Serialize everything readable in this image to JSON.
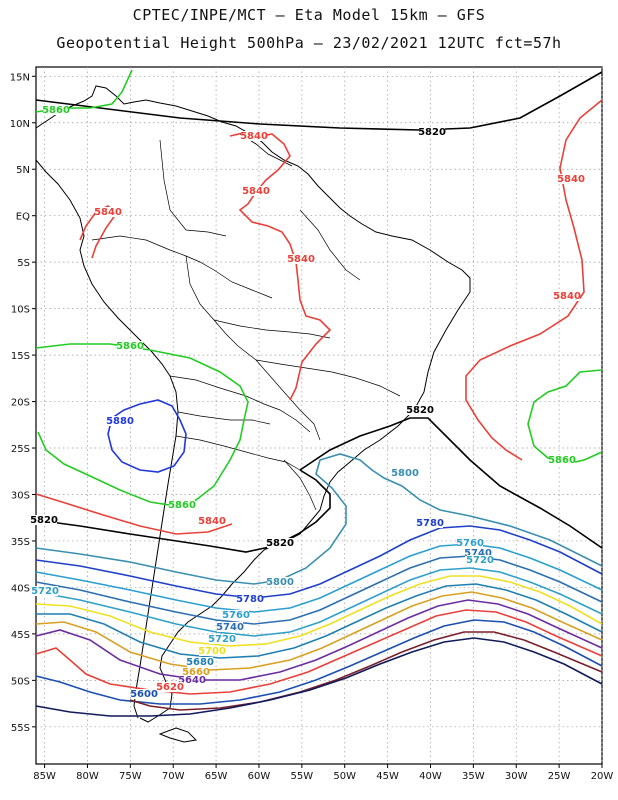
{
  "header": {
    "line1": "CPTEC/INPE/MCT –  Eta Model 15km – GFS",
    "line2": "Geopotential Height 500hPa – 23/02/2021 12UTC fct=57h"
  },
  "axes": {
    "lat_ticks": [
      "15N",
      "10N",
      "5N",
      "EQ",
      "5S",
      "10S",
      "15S",
      "20S",
      "25S",
      "30S",
      "35S",
      "40S",
      "45S",
      "50S",
      "55S"
    ],
    "lon_ticks": [
      "85W",
      "80W",
      "75W",
      "70W",
      "65W",
      "60W",
      "55W",
      "50W",
      "45W",
      "40W",
      "35W",
      "30W",
      "25W",
      "20W"
    ],
    "grid": true,
    "lat_range": [
      -59,
      16
    ],
    "lon_range": [
      -86,
      -20
    ]
  },
  "contour_colors": {
    "5560": "#111a5c",
    "5580": "#7a1f2a",
    "5600": "#1a4fb0",
    "5620": "#e8413a",
    "5640": "#6a2ca0",
    "5660": "#d9a020",
    "5680": "#1f7fb0",
    "5700": "#f0e020",
    "5720": "#2fa0c8",
    "5740": "#2b6fb0",
    "5760": "#2a9fd0",
    "5780": "#1f3fc8",
    "5800": "#3a8fb0",
    "5820": "#000000",
    "5840": "#e8413a",
    "5860": "#22cc22",
    "5880": "#2238d8"
  },
  "contour_labels": [
    {
      "text": "5860",
      "color": "#22cc22"
    },
    {
      "text": "5840",
      "color": "#e8413a"
    },
    {
      "text": "5840",
      "color": "#e8413a"
    },
    {
      "text": "5840",
      "color": "#e8413a"
    },
    {
      "text": "5840",
      "color": "#e8413a"
    },
    {
      "text": "5840",
      "color": "#e8413a"
    },
    {
      "text": "5840",
      "color": "#e8413a"
    },
    {
      "text": "5820",
      "color": "#000000"
    },
    {
      "text": "5860",
      "color": "#22cc22"
    },
    {
      "text": "5880",
      "color": "#2238d8"
    },
    {
      "text": "5820",
      "color": "#000000"
    },
    {
      "text": "5860",
      "color": "#22cc22"
    },
    {
      "text": "5800",
      "color": "#3a8fb0"
    },
    {
      "text": "5860",
      "color": "#22cc22"
    },
    {
      "text": "5840",
      "color": "#e8413a"
    },
    {
      "text": "5780",
      "color": "#1f3fc8"
    },
    {
      "text": "5820",
      "color": "#000000"
    },
    {
      "text": "5820",
      "color": "#000000"
    },
    {
      "text": "5760",
      "color": "#2a9fd0"
    },
    {
      "text": "5740",
      "color": "#2b6fb0"
    },
    {
      "text": "5720",
      "color": "#2fa0c8"
    },
    {
      "text": "5800",
      "color": "#3a8fb0"
    },
    {
      "text": "5720",
      "color": "#2fa0c8"
    },
    {
      "text": "5780",
      "color": "#1f3fc8"
    },
    {
      "text": "5760",
      "color": "#2a9fd0"
    },
    {
      "text": "5740",
      "color": "#2b6fb0"
    },
    {
      "text": "5720",
      "color": "#2fa0c8"
    },
    {
      "text": "5700",
      "color": "#f0e020"
    },
    {
      "text": "5680",
      "color": "#1f7fb0"
    },
    {
      "text": "5660",
      "color": "#d9a020"
    },
    {
      "text": "5640",
      "color": "#6a2ca0"
    },
    {
      "text": "5620",
      "color": "#e8413a"
    },
    {
      "text": "5600",
      "color": "#1a4fb0"
    }
  ]
}
